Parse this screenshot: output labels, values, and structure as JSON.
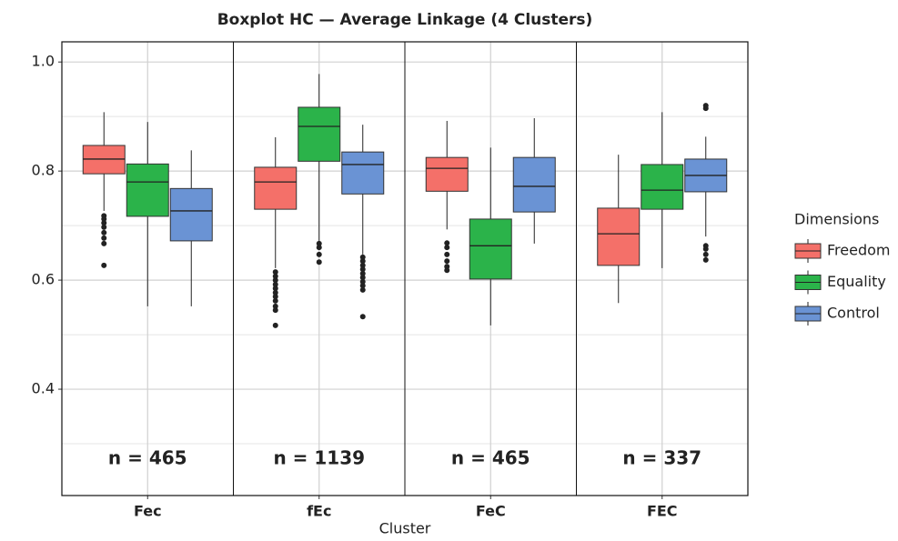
{
  "chart_data": {
    "type": "boxplot",
    "title": "Boxplot HC — Average Linkage (4 Clusters)",
    "x_label": "Cluster",
    "legend_title": "Dimensions",
    "categories": [
      "Fec",
      "fEc",
      "FeC",
      "FEC"
    ],
    "annotations": [
      "n = 465",
      "n = 1139",
      "n = 465",
      "n = 337"
    ],
    "ylim": [
      0.205,
      1.037
    ],
    "yticks": [
      0.4,
      0.6,
      0.8,
      {
        "value": 1,
        "label": "1.0"
      }
    ],
    "minor_yticks": [
      0.3,
      0.5,
      0.7,
      0.9
    ],
    "grid": true,
    "legend_position": "right",
    "series": [
      {
        "name": "Freedom",
        "color": "#f47069",
        "values": [
          {
            "whisker_low": 0.727,
            "q1": 0.795,
            "median": 0.822,
            "q3": 0.847,
            "whisker_high": 0.908,
            "outliers": [
              0.718,
              0.712,
              0.705,
              0.697,
              0.687,
              0.677,
              0.667,
              0.627
            ]
          },
          {
            "whisker_low": 0.622,
            "q1": 0.73,
            "median": 0.78,
            "q3": 0.807,
            "whisker_high": 0.862,
            "outliers": [
              0.615,
              0.607,
              0.6,
              0.592,
              0.585,
              0.577,
              0.57,
              0.562,
              0.552,
              0.545,
              0.517
            ]
          },
          {
            "whisker_low": 0.693,
            "q1": 0.763,
            "median": 0.805,
            "q3": 0.825,
            "whisker_high": 0.892,
            "outliers": [
              0.668,
              0.66,
              0.647,
              0.635,
              0.625,
              0.618
            ]
          },
          {
            "whisker_low": 0.558,
            "q1": 0.627,
            "median": 0.685,
            "q3": 0.732,
            "whisker_high": 0.83,
            "outliers": []
          }
        ]
      },
      {
        "name": "Equality",
        "color": "#2bb34a",
        "values": [
          {
            "whisker_low": 0.552,
            "q1": 0.717,
            "median": 0.78,
            "q3": 0.813,
            "whisker_high": 0.89,
            "outliers": []
          },
          {
            "whisker_low": 0.672,
            "q1": 0.818,
            "median": 0.882,
            "q3": 0.917,
            "whisker_high": 0.978,
            "outliers": [
              0.667,
              0.66,
              0.647,
              0.633
            ]
          },
          {
            "whisker_low": 0.517,
            "q1": 0.602,
            "median": 0.663,
            "q3": 0.712,
            "whisker_high": 0.843,
            "outliers": []
          },
          {
            "whisker_low": 0.622,
            "q1": 0.73,
            "median": 0.765,
            "q3": 0.812,
            "whisker_high": 0.908,
            "outliers": []
          }
        ]
      },
      {
        "name": "Control",
        "color": "#6a93d4",
        "values": [
          {
            "whisker_low": 0.552,
            "q1": 0.672,
            "median": 0.727,
            "q3": 0.768,
            "whisker_high": 0.838,
            "outliers": []
          },
          {
            "whisker_low": 0.647,
            "q1": 0.758,
            "median": 0.812,
            "q3": 0.835,
            "whisker_high": 0.885,
            "outliers": [
              0.642,
              0.635,
              0.627,
              0.62,
              0.612,
              0.605,
              0.597,
              0.59,
              0.582,
              0.533
            ]
          },
          {
            "whisker_low": 0.667,
            "q1": 0.725,
            "median": 0.772,
            "q3": 0.825,
            "whisker_high": 0.897,
            "outliers": []
          },
          {
            "whisker_low": 0.68,
            "q1": 0.762,
            "median": 0.792,
            "q3": 0.822,
            "whisker_high": 0.863,
            "outliers": [
              0.663,
              0.657,
              0.647,
              0.637,
              0.92,
              0.915
            ]
          }
        ]
      }
    ]
  }
}
